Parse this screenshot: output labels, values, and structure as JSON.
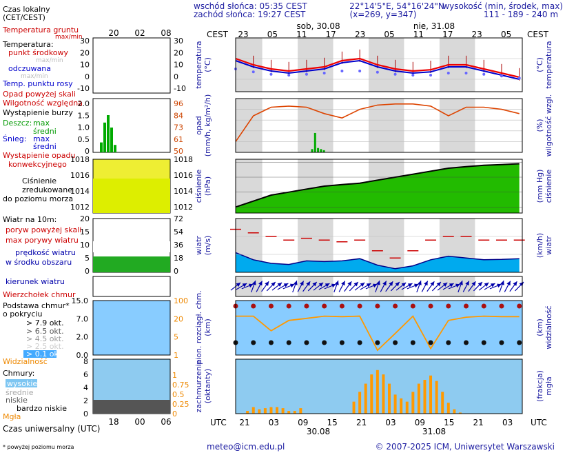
{
  "header": {
    "sunrise": "wschód słońca: 05:35 CEST",
    "sunset": "zachód słońca: 19:27 CEST",
    "coords": "22°14'5\"E, 54°16'24\"N",
    "grid": "(x=269, y=347)",
    "height_title": "wysokość (min, środek, max)",
    "height_values": "111 - 189 - 240 m"
  },
  "time_axis": {
    "cest_label": "CEST",
    "cest_hours": [
      "23",
      "05",
      "11",
      "17",
      "23",
      "05",
      "11",
      "17",
      "23",
      "05"
    ],
    "date_top_1": "sob, 30.08",
    "date_top_2": "nie, 31.08",
    "utc_label": "UTC",
    "utc_hours": [
      "21",
      "03",
      "09",
      "15",
      "21",
      "03",
      "09",
      "15",
      "21",
      "03"
    ],
    "date_bottom_1": "30.08",
    "date_bottom_2": "31.08"
  },
  "legend": {
    "local_time": "Czas lokalny",
    "local_time_2": "(CET/CEST)",
    "legend_hours": [
      "20",
      "02",
      "08"
    ],
    "utc_time": "Czas uniwersalny (UTC)",
    "utc_hours": [
      "18",
      "00",
      "06"
    ],
    "temp": {
      "soil": "Temperatura gruntu",
      "soil_sub": "max/min",
      "title": "Temperatura:",
      "mid": "punkt środkowy",
      "maxmin": "max/min",
      "feels": "odczuwana",
      "dew": "Temp. punktu rosy",
      "left_ticks": [
        "30",
        "20",
        "10",
        "0",
        "-10"
      ],
      "right_ticks": [
        "30",
        "20",
        "10",
        "0",
        "-10"
      ]
    },
    "precip": {
      "above_scale": "Opad powyżej skali",
      "humidity": "Wilgotność względna",
      "storm": "Wystąpienie burzy",
      "rain": "Deszcz:",
      "rain_max": "max",
      "rain_avg": "średni",
      "snow": "Śnieg:",
      "snow_max": "max",
      "snow_avg": "średni",
      "convective": "Wystąpienie opadu",
      "convective_2": "konwekcyjnego",
      "left_ticks": [
        "2.0",
        "1.5",
        "1.0",
        "0.5",
        "0"
      ],
      "right_ticks": [
        "96",
        "84",
        "73",
        "61",
        "50"
      ]
    },
    "pressure": {
      "l1": "Ciśnienie",
      "l2": "zredukowane",
      "l3": "do poziomu morza",
      "left_ticks": [
        "1018",
        "1016",
        "1014",
        "1012"
      ],
      "right_ticks": [
        "1018",
        "1016",
        "1014",
        "1012"
      ]
    },
    "wind": {
      "title": "Wiatr na 10m:",
      "gust_above": "poryw powyżej skali",
      "gust_max": "max porywy wiatru",
      "speed": "prędkość wiatru",
      "speed_2": "w środku obszaru",
      "left_ticks": [
        "20",
        "15",
        "10",
        "5",
        "0"
      ],
      "right_ticks": [
        "72",
        "54",
        "36",
        "18",
        "0"
      ]
    },
    "direction": {
      "title": "kierunek wiatru",
      "vane": "Wierzchołek chmur"
    },
    "cloudbase": {
      "title": "Podstawa chmur*",
      "title_2": "o pokryciu",
      "okt79": "> 7.9 okt.",
      "okt65": "> 6.5 okt.",
      "okt45": "> 4.5 okt.",
      "okt25": "> 2.5 okt.",
      "okt01": "> 0.1 okt.",
      "visibility": "Widzialność",
      "left_ticks": [
        "15.0",
        "7.0",
        "2.0",
        "0.0"
      ],
      "right_ticks": [
        "100",
        "20",
        "5",
        "1"
      ]
    },
    "clouds": {
      "title": "Chmury:",
      "high": "wysokie",
      "mid": "średnie",
      "low": "niskie",
      "very_low": "bardzo niskie",
      "fog": "Mgła",
      "left_ticks": [
        "8",
        "6",
        "4",
        "2",
        "0"
      ],
      "right_ticks": [
        "1",
        "0.75",
        "0.5",
        "0.25",
        "0"
      ]
    },
    "footnote": "* powyżej poziomu morza"
  },
  "axis_labels": {
    "temp_left": "temperatura",
    "temp_left_unit": "(°C)",
    "temp_right": "temperatura",
    "temp_right_unit": "(°C)",
    "precip_left": "opad",
    "precip_left_unit": "(mm/h, kg/m²/h)",
    "precip_right": "wilgotność wzgl.",
    "precip_right_unit": "(%)",
    "press_left": "ciśnienie",
    "press_left_unit": "(hPa)",
    "press_right": "ciśnienie",
    "press_right_unit": "(mm Hg)",
    "wind_left": "wiatr",
    "wind_left_unit": "(m/s)",
    "wind_right": "wiatr",
    "wind_right_unit": "(km/h)",
    "cb_left_1": "pion. rozciągł. chm.",
    "cb_left_2": "(km)",
    "cb_right": "widzialność",
    "cb_right_unit": "(km)",
    "cl_left_1": "zachmurzenie",
    "cl_left_2": "(oktanty)",
    "cl_right": "mgła",
    "cl_right_unit": "(frakcja)"
  },
  "footer": {
    "email": "meteo@icm.edu.pl",
    "copyright": "© 2007-2025 ICM, Uniwersytet Warszawski"
  },
  "colors": {
    "temp_line": "#ee0000",
    "feels_line": "#0000cc",
    "dew_dots": "#6666ff",
    "humidity": "#dd4400",
    "rain": "#00aa00",
    "pressure_fill": "#22bb00",
    "pressure_fill_hi": "#eeee00",
    "wind_fill": "#00aaee",
    "gust": "#cc0000",
    "visibility": "#ff9900",
    "fog_bars": "#ff9900",
    "night_band": "#d9d9d9"
  },
  "chart_data": [
    {
      "type": "line",
      "title": "temperatura",
      "ylabel": "(°C)",
      "ylim": [
        12,
        25
      ],
      "x_hours_utc": [
        18,
        21,
        24,
        27,
        30,
        33,
        36,
        39,
        42,
        45,
        48,
        51,
        54,
        57,
        60,
        63,
        66
      ],
      "series": [
        {
          "name": "punkt środkowy",
          "values": [
            20,
            18.5,
            17.5,
            17,
            17.5,
            18,
            19.5,
            20,
            18.5,
            17.5,
            17,
            17.3,
            18.5,
            18.5,
            17.5,
            16.5,
            15.5
          ]
        },
        {
          "name": "odczuwana",
          "values": [
            19.5,
            18,
            17,
            16.5,
            17,
            17.5,
            19,
            19.5,
            18,
            17,
            16.5,
            16.8,
            18,
            18,
            17,
            16,
            15
          ]
        },
        {
          "name": "Temp. punktu rosy",
          "values": [
            17.5,
            16.8,
            16.2,
            16,
            16.2,
            16.5,
            17,
            17,
            16.7,
            16.2,
            16,
            16,
            16.5,
            16.5,
            16.2,
            15.8,
            15.3
          ]
        }
      ]
    },
    {
      "type": "bar",
      "title": "opad",
      "ylabel": "(mm/h, kg/m²/h)",
      "ylim": [
        0,
        5
      ],
      "series": [
        {
          "name": "średni",
          "x_hours_utc": [
            31,
            31.5,
            32,
            32.5,
            33
          ],
          "values": [
            0.3,
            1.8,
            0.4,
            0.3,
            0.2
          ]
        },
        {
          "name": "Wilgotność względna",
          "x_hours_utc": [
            18,
            21,
            24,
            27,
            30,
            33,
            36,
            39,
            42,
            45,
            48,
            51,
            54,
            57,
            60,
            63,
            66
          ],
          "values": [
            60,
            84,
            92,
            93,
            92,
            86,
            82,
            90,
            94,
            95,
            95,
            93,
            84,
            92,
            92,
            90,
            86
          ]
        }
      ]
    },
    {
      "type": "area",
      "title": "ciśnienie",
      "ylabel": "(hPa)",
      "ylim": [
        998,
        1016
      ],
      "x_hours_utc": [
        18,
        21,
        24,
        27,
        30,
        33,
        36,
        39,
        42,
        45,
        48,
        51,
        54,
        57,
        60,
        63,
        66
      ],
      "values": [
        1000,
        1002,
        1004,
        1005,
        1006,
        1007,
        1007.5,
        1008,
        1009,
        1010,
        1011,
        1012,
        1013,
        1013.5,
        1014,
        1014.2,
        1014.5
      ]
    },
    {
      "type": "area",
      "title": "wiatr",
      "ylabel": "(m/s)",
      "ylim": [
        0,
        15
      ],
      "x_hours_utc": [
        18,
        21,
        24,
        27,
        30,
        33,
        36,
        39,
        42,
        45,
        48,
        51,
        54,
        57,
        60,
        63,
        66
      ],
      "series": [
        {
          "name": "prędkość wiatru",
          "values": [
            5.5,
            3.5,
            2.5,
            2.2,
            3.2,
            3.0,
            3.2,
            3.8,
            2.0,
            1.0,
            1.8,
            3.5,
            4.5,
            4.0,
            3.5,
            3.6,
            3.8
          ]
        },
        {
          "name": "max porywy wiatru",
          "values": [
            12,
            11,
            10,
            9,
            9.5,
            9,
            8.5,
            9,
            6,
            4,
            6,
            9,
            10,
            10,
            9,
            9,
            9
          ]
        }
      ]
    },
    {
      "type": "line",
      "title": "widzialność",
      "ylabel": "(km)",
      "x_hours_utc": [
        18,
        21,
        24,
        27,
        30,
        33,
        36,
        39,
        42,
        45,
        48,
        51,
        54,
        57,
        60,
        63,
        66
      ],
      "values": [
        19,
        19,
        4,
        12,
        15,
        19,
        18,
        19,
        0.5,
        3,
        19,
        0.6,
        12,
        17,
        19,
        18,
        18
      ]
    },
    {
      "type": "bar",
      "title": "mgła",
      "ylabel": "(frakcja)",
      "ylim": [
        0,
        1
      ],
      "x_hours_utc": [
        19,
        20,
        21,
        22,
        23,
        24,
        25,
        26,
        27,
        28,
        29,
        30,
        31,
        32,
        33,
        34,
        35,
        36,
        37,
        38,
        39,
        40,
        41,
        42,
        43,
        44,
        45,
        46,
        47,
        48,
        49,
        50,
        51,
        52,
        53,
        54,
        55,
        56,
        57,
        58,
        59,
        60,
        61,
        62,
        63,
        64,
        65,
        66
      ],
      "values": [
        0,
        0.05,
        0.12,
        0.08,
        0.1,
        0.12,
        0.12,
        0.1,
        0.05,
        0.05,
        0.1,
        0,
        0,
        0,
        0,
        0,
        0,
        0,
        0,
        0.22,
        0.4,
        0.55,
        0.72,
        0.8,
        0.72,
        0.55,
        0.35,
        0.28,
        0.22,
        0.4,
        0.55,
        0.62,
        0.7,
        0.6,
        0.4,
        0.2,
        0.08,
        0.02,
        0,
        0,
        0,
        0,
        0,
        0,
        0,
        0,
        0,
        0
      ]
    }
  ]
}
